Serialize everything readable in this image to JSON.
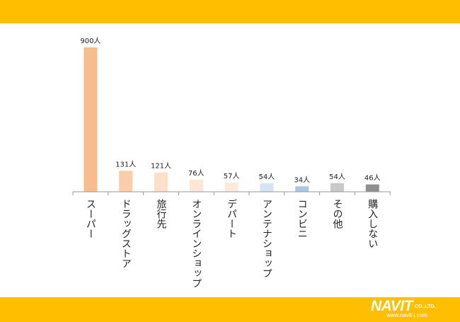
{
  "chart_data": {
    "type": "bar",
    "categories": [
      "スーパー",
      "ドラッグストア",
      "旅行先",
      "オンラインショップ",
      "デパート",
      "アンテナショップ",
      "コンビニ",
      "その他",
      "購入しない"
    ],
    "values": [
      900,
      131,
      121,
      76,
      57,
      54,
      34,
      54,
      46
    ],
    "data_labels": [
      "900人",
      "131人",
      "121人",
      "76人",
      "57人",
      "54人",
      "34人",
      "54人",
      "46人"
    ],
    "ylim": [
      0,
      900
    ],
    "grid": false,
    "colors": [
      "#F9BC8F",
      "#FBCDA8",
      "#FCE0CB",
      "#FDE6D6",
      "#FDE9DA",
      "#D6E3F3",
      "#A9C5E8",
      "#C8C8C8",
      "#8E8E8E"
    ]
  },
  "branding": {
    "logo_text": "NAVIT",
    "logo_suffix": "CO.,LTD.",
    "logo_url": "www.navit-j.com",
    "band_color": "#FFBF00"
  }
}
